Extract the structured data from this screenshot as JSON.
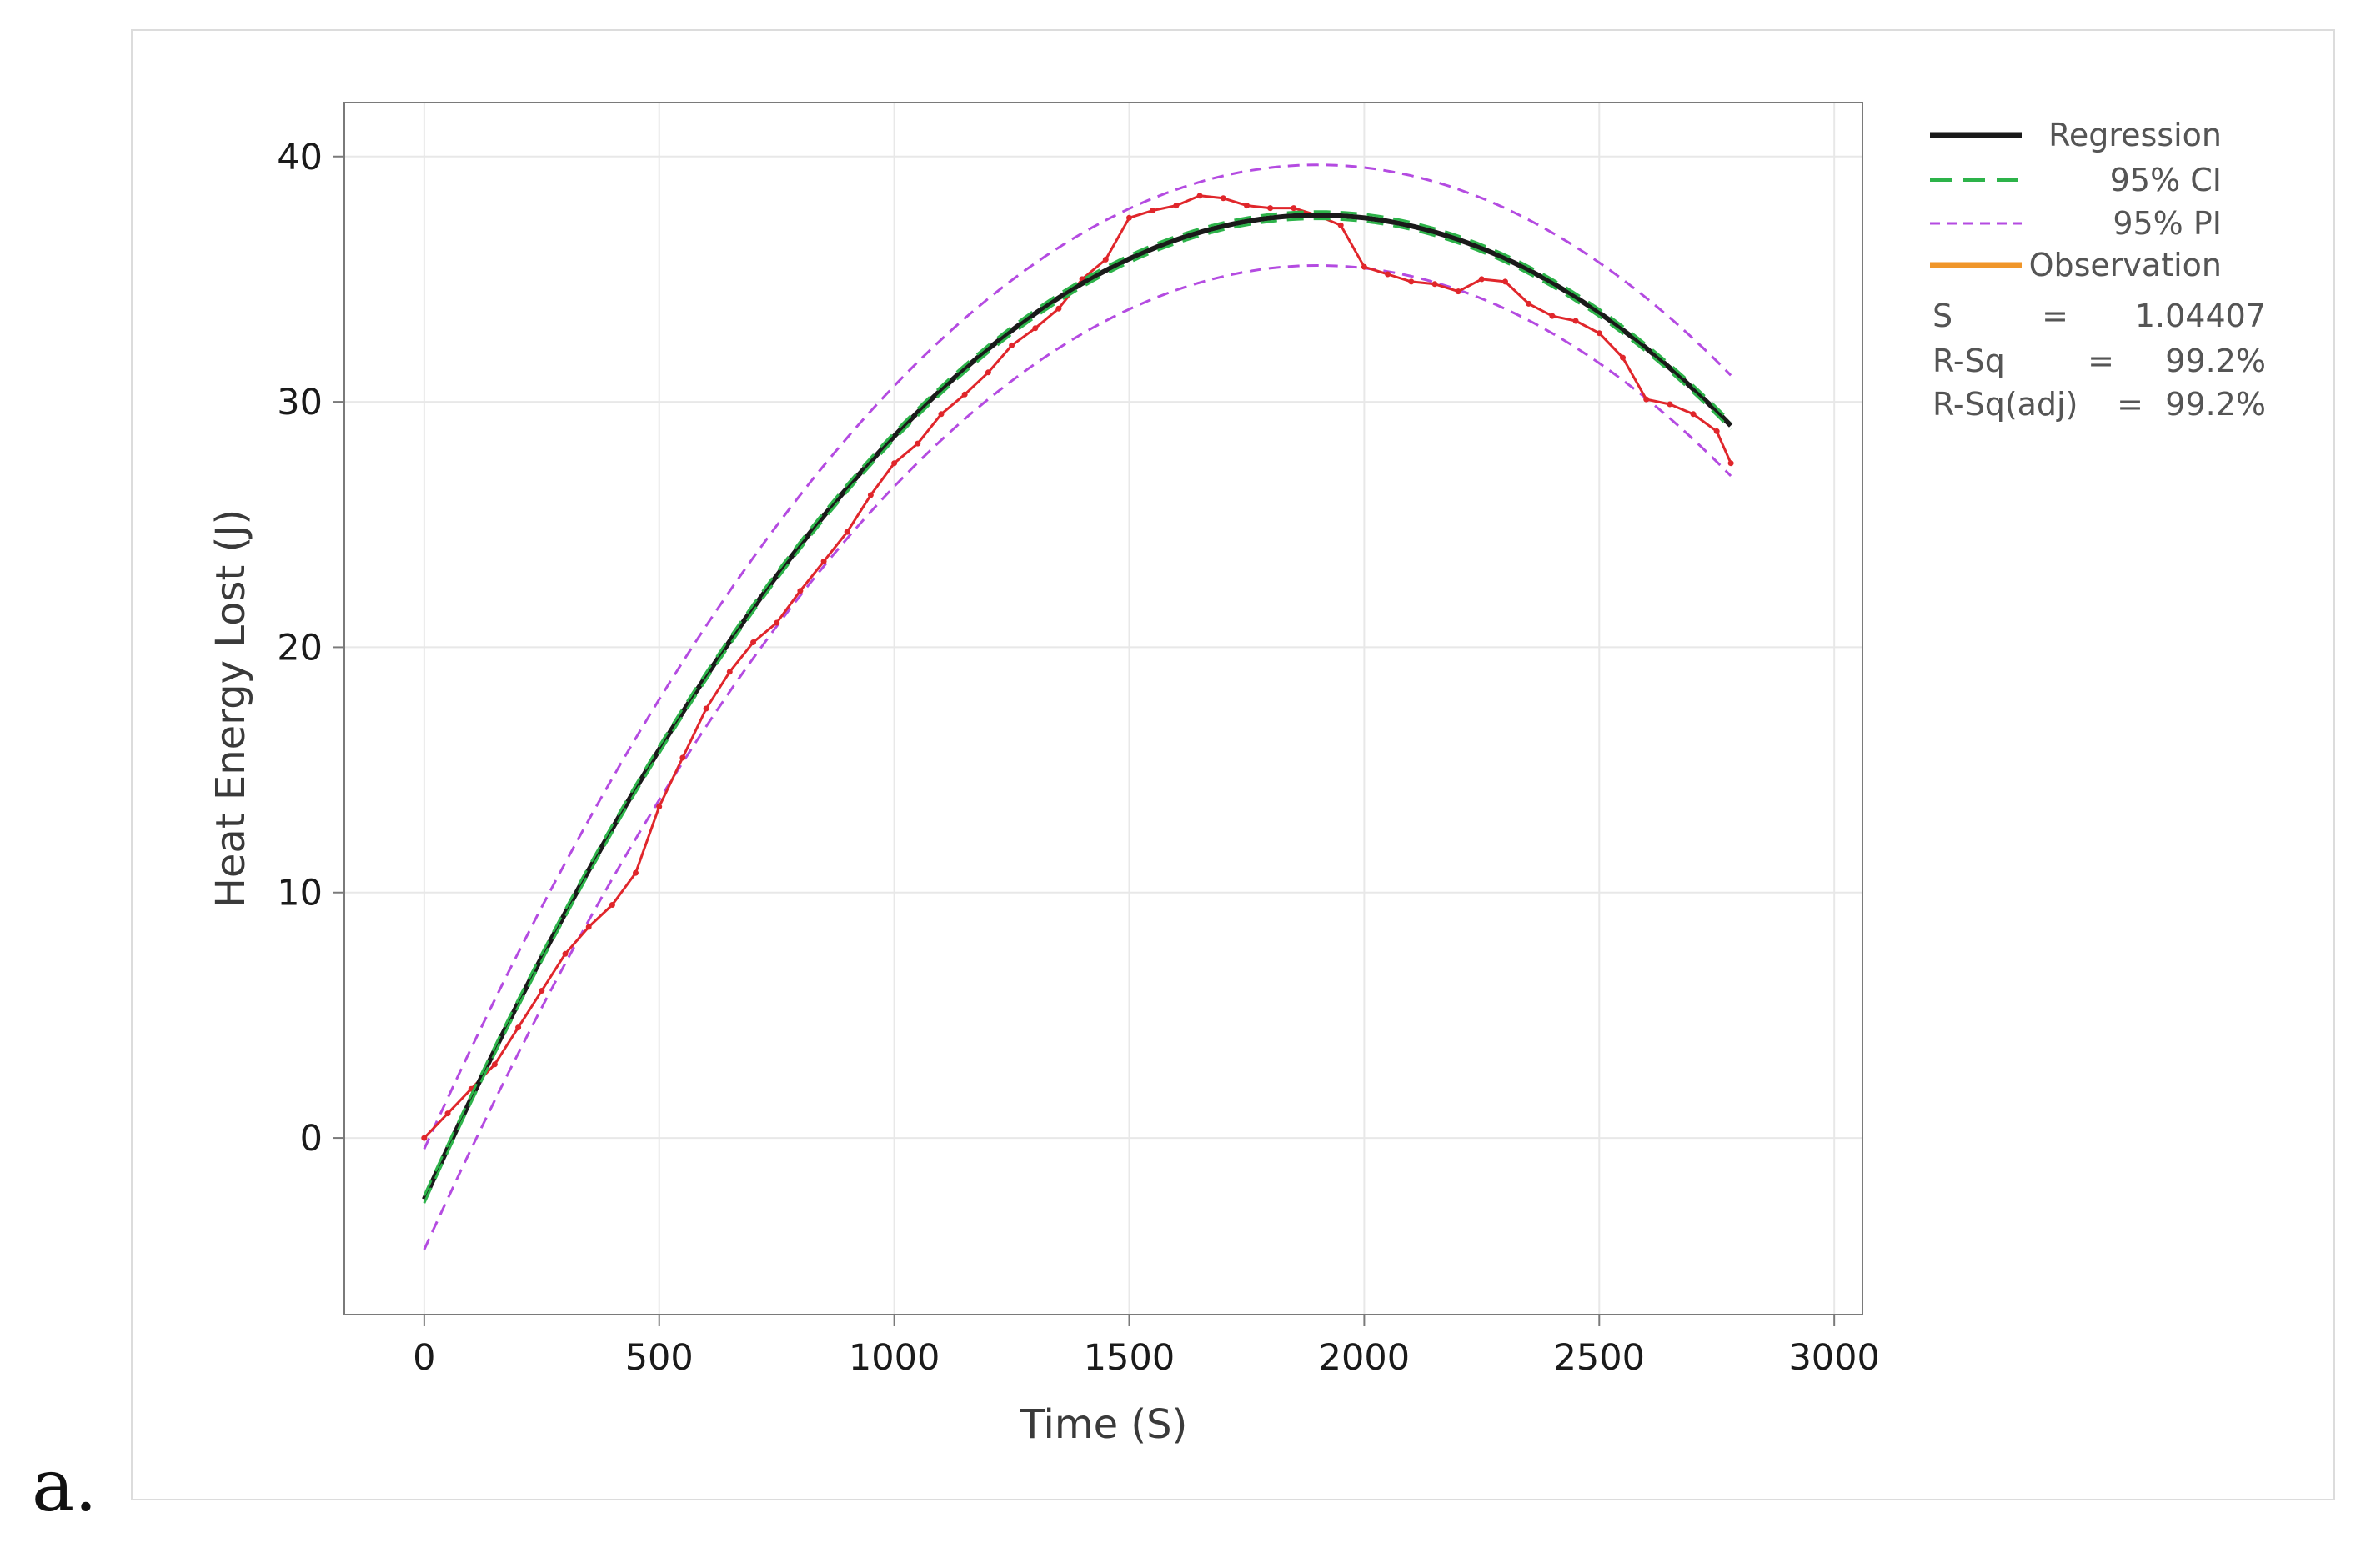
{
  "panel_label": "a.",
  "chart_data": {
    "type": "line",
    "xlabel": "Time (S)",
    "ylabel": "Heat Energy Lost (J)",
    "xlim": [
      -170,
      3060
    ],
    "ylim": [
      -7.2,
      42.2
    ],
    "x_ticks": [
      "0",
      "500",
      "1000",
      "1500",
      "2000",
      "2500",
      "3000"
    ],
    "y_ticks": [
      "0",
      "10",
      "20",
      "30",
      "40"
    ],
    "grid": true,
    "legend_position": "right",
    "regression": {
      "intercept": -2.5,
      "b1": 0.0422,
      "b2": -1.11e-05,
      "x_range": [
        0,
        2780
      ]
    },
    "ci_half_width": 0.15,
    "pi_half_width": 2.05,
    "series": [
      {
        "name": "Regression",
        "color": "#1a1a1a",
        "style": "solid"
      },
      {
        "name": "95% CI",
        "color": "#2db34a",
        "style": "dashed"
      },
      {
        "name": "95% PI",
        "color": "#b44be1",
        "style": "dashed"
      },
      {
        "name": "Observation",
        "color": "#f0962a",
        "style": "solid"
      }
    ],
    "observations": {
      "color": "#e0262b",
      "x": [
        0,
        50,
        100,
        150,
        200,
        250,
        300,
        350,
        400,
        450,
        500,
        550,
        600,
        650,
        700,
        750,
        800,
        850,
        900,
        950,
        1000,
        1050,
        1100,
        1150,
        1200,
        1250,
        1300,
        1350,
        1400,
        1450,
        1500,
        1550,
        1600,
        1650,
        1700,
        1750,
        1800,
        1850,
        1900,
        1950,
        2000,
        2050,
        2100,
        2150,
        2200,
        2250,
        2300,
        2350,
        2400,
        2450,
        2500,
        2550,
        2600,
        2650,
        2700,
        2750,
        2780
      ],
      "y": [
        0.0,
        1.0,
        2.0,
        3.0,
        4.5,
        6.0,
        7.5,
        8.6,
        9.5,
        10.8,
        13.5,
        15.5,
        17.5,
        19.0,
        20.2,
        21.0,
        22.3,
        23.5,
        24.7,
        26.2,
        27.5,
        28.3,
        29.5,
        30.3,
        31.2,
        32.3,
        33.0,
        33.8,
        35.0,
        35.8,
        37.5,
        37.8,
        38.0,
        38.4,
        38.3,
        38.0,
        37.9,
        37.9,
        37.6,
        37.2,
        35.5,
        35.2,
        34.9,
        34.8,
        34.5,
        35.0,
        34.9,
        34.0,
        33.5,
        33.3,
        32.8,
        31.8,
        30.1,
        29.9,
        29.5,
        28.8,
        27.5
      ]
    },
    "stats": [
      {
        "label": "S",
        "eq": "=",
        "value": "1.04407"
      },
      {
        "label": "R-Sq",
        "eq": "=",
        "value": "99.2%"
      },
      {
        "label": "R-Sq(adj)",
        "eq": "=",
        "value": "99.2%"
      }
    ]
  }
}
